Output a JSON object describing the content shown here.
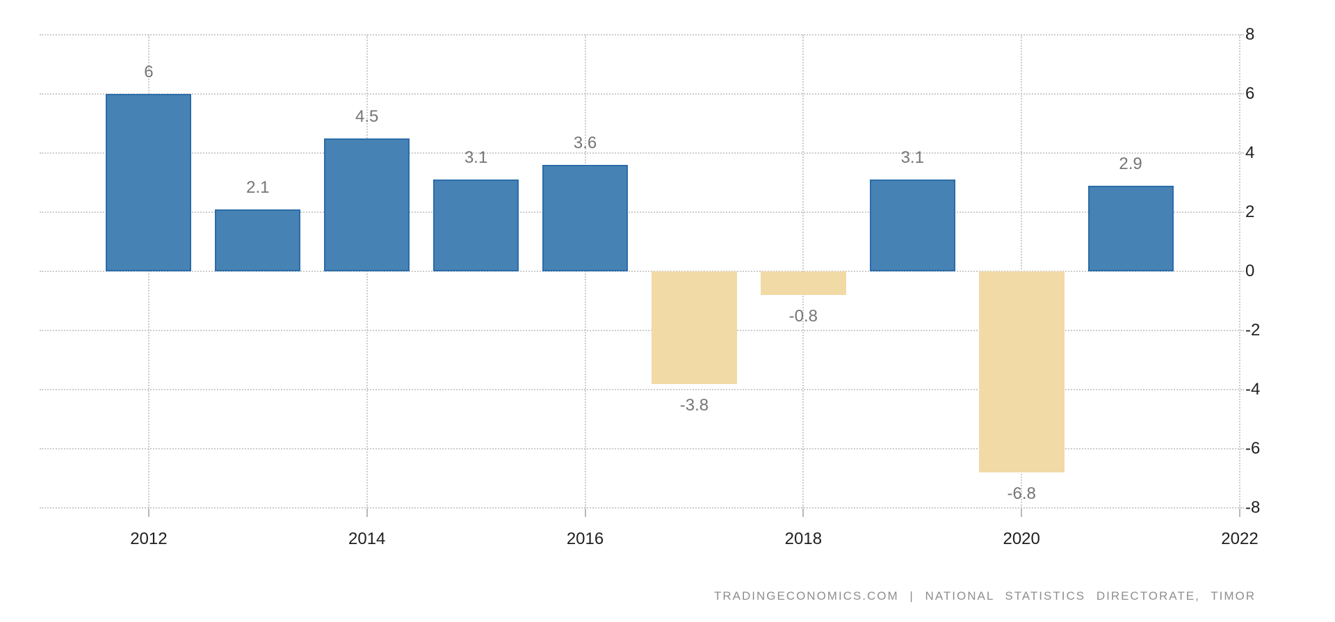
{
  "chart_data": {
    "type": "bar",
    "categories": [
      2012,
      2013,
      2014,
      2015,
      2016,
      2017,
      2018,
      2019,
      2020,
      2021
    ],
    "values": [
      6,
      2.1,
      4.5,
      3.1,
      3.6,
      -3.8,
      -0.8,
      3.1,
      -6.8,
      2.9
    ],
    "value_labels": [
      "6",
      "2.1",
      "4.5",
      "3.1",
      "3.6",
      "-3.8",
      "-0.8",
      "3.1",
      "-6.8",
      "2.9"
    ],
    "title": "",
    "xlabel": "",
    "ylabel": "",
    "ylim": [
      -8,
      8
    ],
    "yticks": [
      8,
      6,
      4,
      2,
      0,
      -2,
      -4,
      -6,
      -8
    ],
    "xticks": [
      2012,
      2014,
      2016,
      2018,
      2020,
      2022
    ],
    "x_range": [
      2011,
      2022
    ],
    "grid": "dotted",
    "legend": "none",
    "axis_side": "right",
    "colors": {
      "positive_fill": "#4682B4",
      "positive_border": "#2B6CA9",
      "negative_fill": "#F2DAA7",
      "gridline": "#CBCBCB",
      "value_label": "#757575",
      "axis_label": "#1F1F1F",
      "background": "#FFFFFF"
    }
  },
  "footer": {
    "attribution": "TRADINGECONOMICS.COM | NATIONAL STATISTICS DIRECTORATE, TIMOR"
  }
}
